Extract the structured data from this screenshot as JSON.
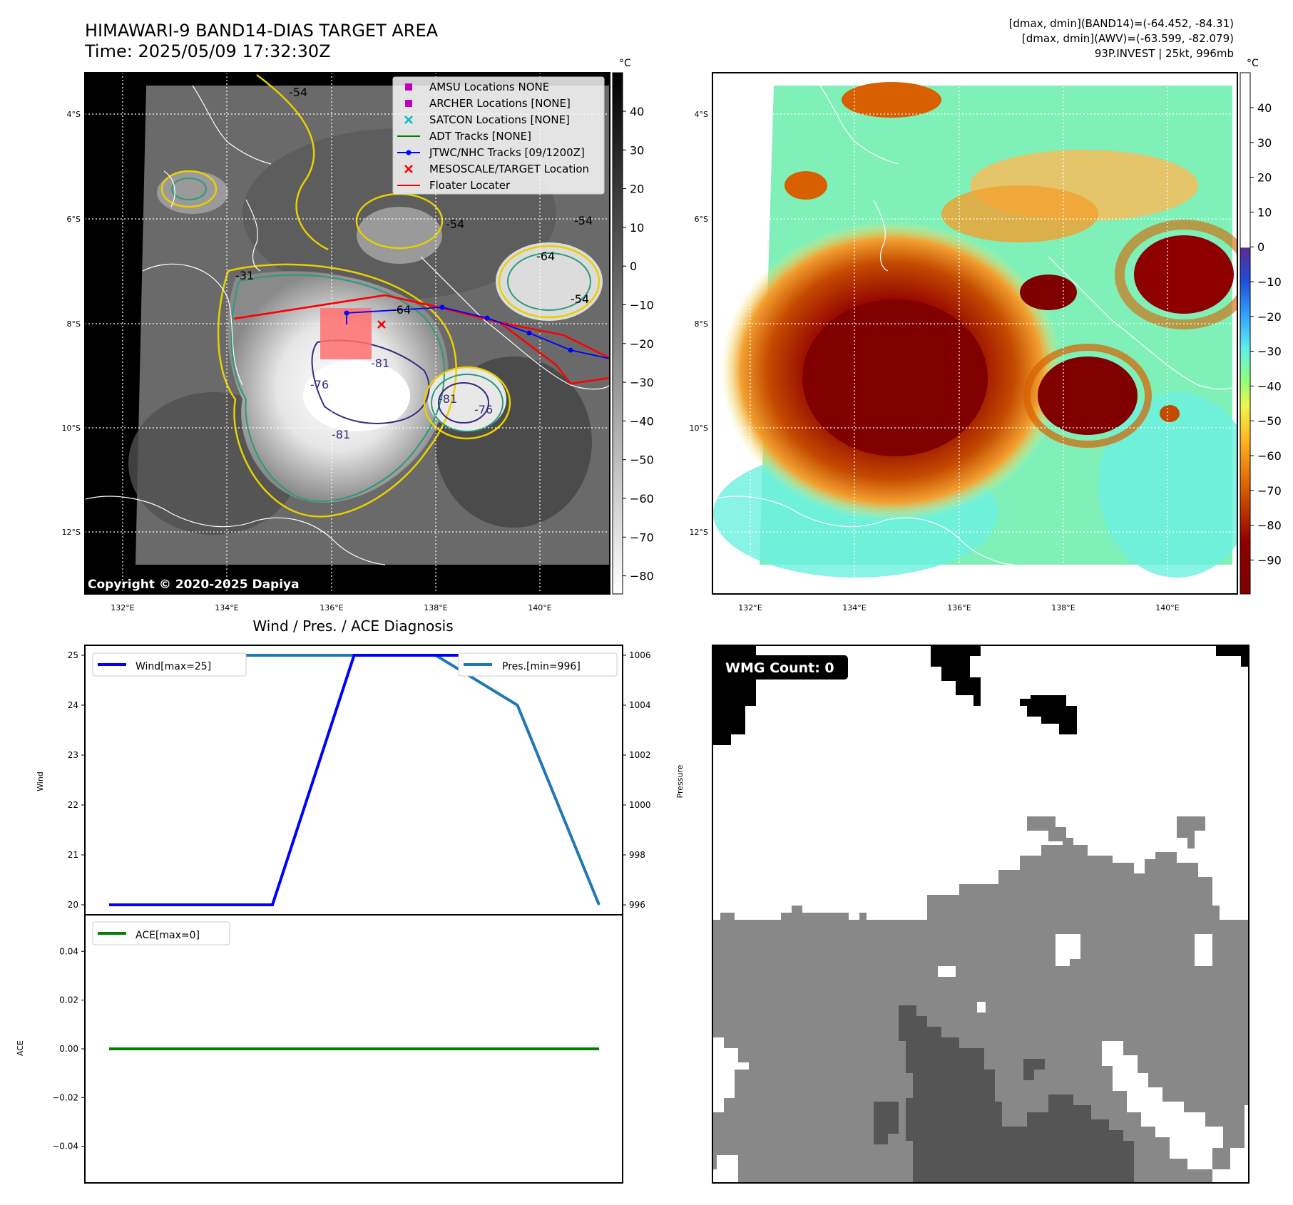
{
  "header": {
    "title": "HIMAWARI-9 BAND14-DIAS TARGET AREA",
    "time": "Time: 2025/05/09 17:32:30Z",
    "stats_band14": "[dmax, dmin](BAND14)=(-64.452, -84.31)",
    "stats_awv": "[dmax, dmin](AWV)=(-63.599, -82.079)",
    "storm_info": "93P.INVEST | 25kt, 996mb"
  },
  "maps": {
    "lat_labels": [
      "4°S",
      "6°S",
      "8°S",
      "10°S",
      "12°S"
    ],
    "lon_labels": [
      "132°E",
      "134°E",
      "136°E",
      "138°E",
      "140°E"
    ],
    "copyright": "Copyright © 2020-2025 Dapiya",
    "contour_labels": [
      "-54",
      "-64",
      "-54",
      "-76",
      "-81",
      "-76",
      "-81",
      "-54",
      "-54",
      "-31",
      "-64",
      "-81"
    ],
    "colorbar_unit": "°C",
    "gray_colorbar_ticks": [
      "40",
      "30",
      "20",
      "10",
      "0",
      "−10",
      "−20",
      "−30",
      "−40",
      "−50",
      "−60",
      "−70",
      "−80"
    ],
    "awv_colorbar_ticks": [
      "40",
      "30",
      "20",
      "10",
      "0",
      "−10",
      "−20",
      "−30",
      "−40",
      "−50",
      "−60",
      "−70",
      "−80",
      "−90"
    ],
    "legend": [
      {
        "label": "AMSU Locations NONE",
        "color": "#c000c0",
        "marker": "square"
      },
      {
        "label": "ARCHER Locations [NONE]",
        "color": "#c000c0",
        "marker": "square"
      },
      {
        "label": "SATCON Locations [NONE]",
        "color": "#00c0c0",
        "marker": "x"
      },
      {
        "label": "ADT Tracks [NONE]",
        "color": "#008000",
        "marker": "line"
      },
      {
        "label": "JTWC/NHC Tracks [09/1200Z]",
        "color": "#0000ff",
        "marker": "line-dot"
      },
      {
        "label": "MESOSCALE/TARGET Location",
        "color": "#ff0000",
        "marker": "x"
      },
      {
        "label": "Floater Locater",
        "color": "#ff0000",
        "marker": "line"
      }
    ]
  },
  "diagnosis": {
    "title": "Wind / Pres. / ACE Diagnosis",
    "wind_legend": "Wind[max=25]",
    "pres_legend": "Pres.[min=996]",
    "ace_legend": "ACE[max=0]",
    "wind_axis_label": "Wind",
    "pres_axis_label": "Pressure",
    "ace_axis_label": "ACE",
    "wind_ticks": [
      "25",
      "24",
      "23",
      "22",
      "21",
      "20"
    ],
    "pres_ticks": [
      "1006",
      "1004",
      "1002",
      "1000",
      "998",
      "996"
    ],
    "ace_ticks": [
      "0.04",
      "0.02",
      "0.00",
      "−0.02",
      "−0.04"
    ]
  },
  "wmg": {
    "label": "WMG Count: 0"
  },
  "chart_data": [
    {
      "type": "line",
      "title": "Wind / Pres. / ACE Diagnosis",
      "ylabel": "Wind",
      "ylim": [
        19.8,
        25.2
      ],
      "x": [
        0,
        1,
        2,
        3,
        4,
        5,
        6
      ],
      "series": [
        {
          "name": "Wind[max=25]",
          "values": [
            20,
            20,
            20,
            25,
            25,
            25,
            25
          ],
          "color": "#0000ff"
        }
      ]
    },
    {
      "type": "line",
      "ylabel": "Pressure",
      "ylim": [
        995.6,
        1006.4
      ],
      "x": [
        0,
        1,
        2,
        3,
        4,
        5,
        6
      ],
      "series": [
        {
          "name": "Pres.[min=996]",
          "values": [
            1006,
            1006,
            1006,
            1006,
            1006,
            1004,
            996
          ],
          "color": "#1f77b4"
        }
      ]
    },
    {
      "type": "line",
      "ylabel": "ACE",
      "ylim": [
        -0.055,
        0.055
      ],
      "x": [
        0,
        1,
        2,
        3,
        4,
        5,
        6
      ],
      "series": [
        {
          "name": "ACE[max=0]",
          "values": [
            0,
            0,
            0,
            0,
            0,
            0,
            0
          ],
          "color": "#008000"
        }
      ]
    }
  ]
}
